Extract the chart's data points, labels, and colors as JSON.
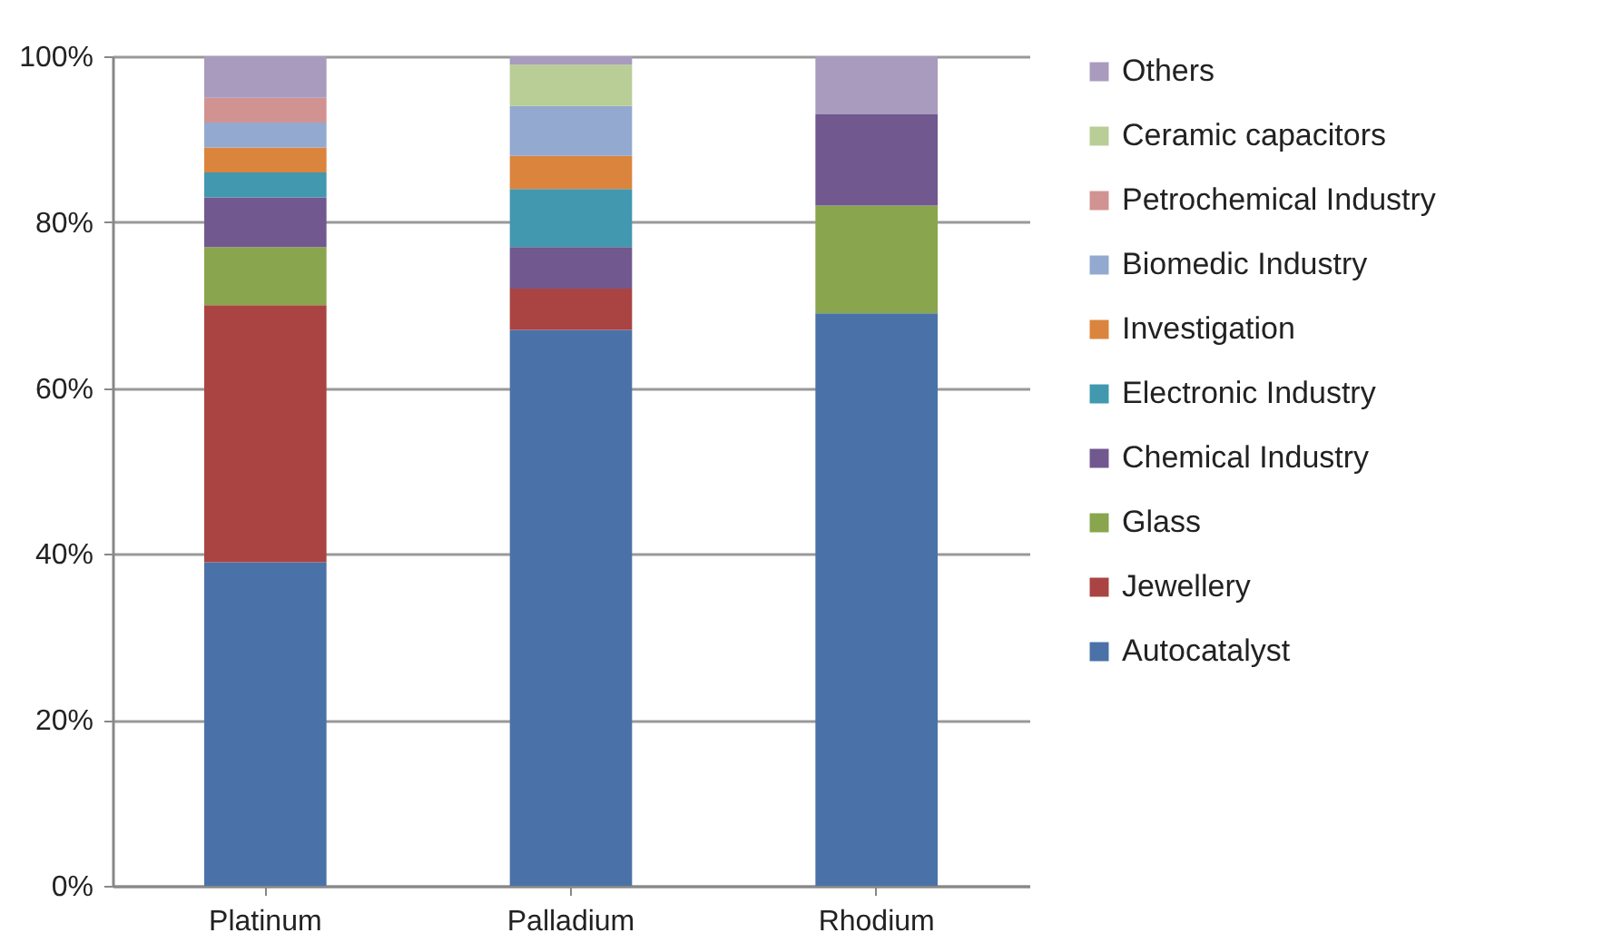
{
  "chart_data": {
    "type": "bar",
    "stacked": true,
    "categories": [
      "Platinum",
      "Palladium",
      "Rhodium"
    ],
    "series": [
      {
        "name": "Autocatalyst",
        "color": "#4a72a8",
        "values": [
          39,
          67,
          69
        ]
      },
      {
        "name": "Jewellery",
        "color": "#a94442",
        "values": [
          31,
          5,
          0
        ]
      },
      {
        "name": "Glass",
        "color": "#89a54e",
        "values": [
          7,
          0,
          13
        ]
      },
      {
        "name": "Chemical Industry",
        "color": "#71588f",
        "values": [
          6,
          5,
          11
        ]
      },
      {
        "name": "Electronic Industry",
        "color": "#4198af",
        "values": [
          3,
          7,
          0
        ]
      },
      {
        "name": "Investigation",
        "color": "#db843d",
        "values": [
          3,
          4,
          0
        ]
      },
      {
        "name": "Biomedic Industry",
        "color": "#93a9cf",
        "values": [
          3,
          6,
          0
        ]
      },
      {
        "name": "Petrochemical Industry",
        "color": "#d19392",
        "values": [
          3,
          0,
          0
        ]
      },
      {
        "name": "Ceramic capacitors",
        "color": "#b9cd96",
        "values": [
          0,
          5,
          0
        ]
      },
      {
        "name": "Others",
        "color": "#a99bbd",
        "values": [
          5,
          1,
          7
        ]
      }
    ],
    "ylim": [
      0,
      100
    ],
    "yticks": [
      {
        "value": 0,
        "label": "0%"
      },
      {
        "value": 20,
        "label": "20%"
      },
      {
        "value": 40,
        "label": "40%"
      },
      {
        "value": 60,
        "label": "60%"
      },
      {
        "value": 80,
        "label": "80%"
      },
      {
        "value": 100,
        "label": "100%"
      }
    ],
    "grid": "y",
    "legend": "right"
  }
}
